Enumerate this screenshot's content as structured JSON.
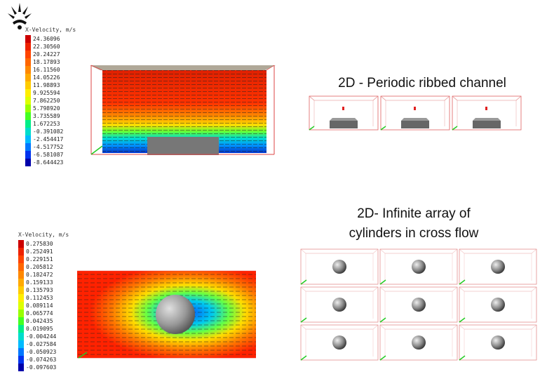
{
  "panel_top": {
    "legend_title": "X-Velocity, m/s",
    "legend_values": [
      "24.36096",
      "22.30560",
      "20.24227",
      "18.17893",
      "16.11560",
      "14.05226",
      "11.98893",
      "9.925594",
      "7.862250",
      "5.798920",
      "3.735589",
      "1.672253",
      "-0.391082",
      "-2.454417",
      "-4.517752",
      "-6.581087",
      "-8.644423"
    ],
    "heading": "2D - Periodic ribbed channel"
  },
  "panel_bottom": {
    "legend_title": "X-Velocity, m/s",
    "legend_values": [
      "0.275830",
      "0.252491",
      "0.229151",
      "0.205812",
      "0.182472",
      "0.159133",
      "0.135793",
      "0.112453",
      "0.089114",
      "0.065774",
      "0.042435",
      "0.019095",
      "-0.004244",
      "-0.027584",
      "-0.050923",
      "-0.074263",
      "-0.097603"
    ],
    "heading_line1": "2D- Infinite array of",
    "heading_line2": "cylinders in cross flow"
  },
  "colors": {
    "scale": [
      "#cc0000",
      "#ee2200",
      "#ff4400",
      "#ff6600",
      "#ff8800",
      "#ffaa00",
      "#ffcc00",
      "#ffee00",
      "#ddff00",
      "#99ff00",
      "#44ff22",
      "#00ee88",
      "#00ddcc",
      "#00bbff",
      "#0077ff",
      "#0033ee",
      "#0000aa"
    ]
  }
}
